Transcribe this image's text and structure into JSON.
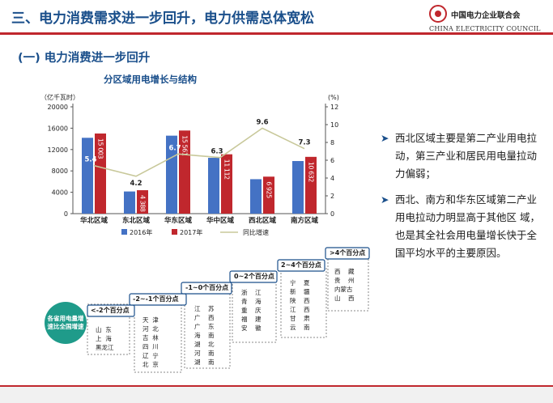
{
  "slide": {
    "title": "三、电力消费需求进一步回升，电力供需总体宽松",
    "section_heading": "(一)  电力消费进一步回升"
  },
  "logo": {
    "name_cn": "中国电力企业联合会",
    "name_en": "CHINA ELECTRICITY COUNCIL",
    "color": "#c0272d"
  },
  "colors": {
    "accent": "#1a4f8b",
    "red": "#c0272d",
    "bar2016": "#4472c4",
    "bar2017": "#c0272d",
    "growth_line": "#c8c89a",
    "badge": "#1f9b8a"
  },
  "chart_data": {
    "type": "bar",
    "title": "分区域用电增长与结构",
    "y_left_unit": "（亿千瓦时）",
    "y_right_unit": "(%)",
    "ylim": [
      0,
      20000
    ],
    "y2lim": [
      0,
      12
    ],
    "yticks": [
      "0",
      "4000",
      "8000",
      "12000",
      "16000",
      "20000"
    ],
    "y2ticks": [
      "0",
      "2",
      "4",
      "6",
      "8",
      "10",
      "12"
    ],
    "categories": [
      "华北区域",
      "东北区域",
      "华东区域",
      "华中区域",
      "西北区域",
      "南方区域"
    ],
    "series": [
      {
        "name": "2016年",
        "type": "bar",
        "values": [
          14200,
          4150,
          14600,
          10450,
          6450,
          9850
        ]
      },
      {
        "name": "2017年",
        "type": "bar",
        "values": [
          15003,
          4388,
          15561,
          11112,
          6925,
          10632
        ],
        "labels": [
          "15 003",
          "4 388",
          "15 561",
          "11 112",
          "6 925",
          "10 632"
        ]
      },
      {
        "name": "同比增速",
        "type": "line",
        "axis": "right",
        "values": [
          5.4,
          4.2,
          6.7,
          6.3,
          9.6,
          7.3
        ],
        "labels": [
          "5.4",
          "4.2",
          "6.7",
          "6.3",
          "9.6",
          "7.3"
        ]
      }
    ],
    "grid": false,
    "legend": "bottom"
  },
  "bullets": [
    "西北区域主要是第二产业用电拉动，第三产业和居民用电量拉动力偏弱；",
    "西北、南方和华东区域第二产业用电拉动力明显高于其他区 域，也是其全社会用电量增长快于全国平均水平的主要原因。"
  ],
  "stairs": {
    "badge": "各省用电量增速比全国增速",
    "steps": [
      {
        "label": "<-2个百分点",
        "provinces": "山  东\n上  海\n黑龙江"
      },
      {
        "label": "-2~-1个百分点",
        "provinces": "天  津\n河  北\n吉  林\n四  川\n辽  宁\n北  京"
      },
      {
        "label": "-1~0个百分点",
        "provinces": "江    苏\n广    西\n广    东\n海    南\n湖    北\n河    南\n湖    南"
      },
      {
        "label": "0~2个百分点",
        "provinces": "浙    江\n青    海\n重    庆\n福    建\n安    徽"
      },
      {
        "label": "2~4个百分点",
        "provinces": "宁    夏\n新    疆\n陕    西\n江    西\n甘    肃\n云    南"
      },
      {
        "label": ">4个百分点",
        "provinces": "西    藏\n贵    州\n内蒙古\n山    西"
      }
    ]
  }
}
